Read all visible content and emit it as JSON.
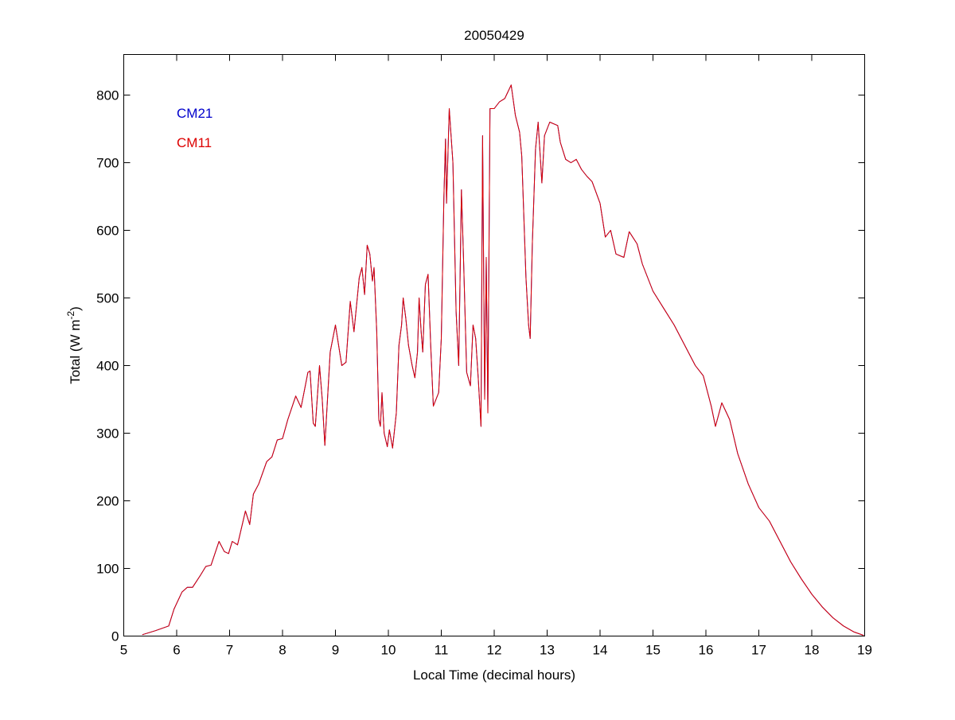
{
  "chart_data": {
    "type": "line",
    "title": "20050429",
    "xlabel": "Local Time (decimal hours)",
    "ylabel": "Total (W m-2)",
    "ylabel_parts": {
      "main": "Total (W m",
      "sup": "-2",
      "end": ")"
    },
    "xlim": [
      5,
      19
    ],
    "ylim": [
      0,
      860
    ],
    "xticks": [
      5,
      6,
      7,
      8,
      9,
      10,
      11,
      12,
      13,
      14,
      15,
      16,
      17,
      18,
      19
    ],
    "yticks": [
      0,
      100,
      200,
      300,
      400,
      500,
      600,
      700,
      800
    ],
    "grid": false,
    "legend_placement": "top-left",
    "x": [
      5.35,
      5.6,
      5.85,
      5.95,
      6.1,
      6.2,
      6.3,
      6.45,
      6.55,
      6.65,
      6.8,
      6.9,
      6.98,
      7.05,
      7.15,
      7.3,
      7.38,
      7.45,
      7.55,
      7.7,
      7.8,
      7.9,
      8.0,
      8.1,
      8.25,
      8.35,
      8.48,
      8.52,
      8.58,
      8.62,
      8.7,
      8.75,
      8.8,
      8.9,
      9.0,
      9.08,
      9.12,
      9.2,
      9.28,
      9.35,
      9.45,
      9.5,
      9.55,
      9.6,
      9.65,
      9.7,
      9.73,
      9.78,
      9.82,
      9.85,
      9.88,
      9.92,
      9.98,
      10.02,
      10.08,
      10.15,
      10.2,
      10.25,
      10.28,
      10.33,
      10.38,
      10.45,
      10.5,
      10.55,
      10.58,
      10.62,
      10.65,
      10.7,
      10.75,
      10.8,
      10.85,
      10.95,
      11.0,
      11.05,
      11.08,
      11.1,
      11.15,
      11.22,
      11.28,
      11.33,
      11.38,
      11.42,
      11.48,
      11.55,
      11.6,
      11.65,
      11.7,
      11.75,
      11.78,
      11.82,
      11.85,
      11.88,
      11.92,
      12.0,
      12.1,
      12.2,
      12.32,
      12.4,
      12.48,
      12.52,
      12.6,
      12.65,
      12.68,
      12.72,
      12.78,
      12.83,
      12.9,
      12.95,
      13.05,
      13.2,
      13.25,
      13.35,
      13.45,
      13.55,
      13.65,
      13.75,
      13.85,
      14.0,
      14.1,
      14.2,
      14.3,
      14.45,
      14.55,
      14.7,
      14.8,
      15.0,
      15.2,
      15.4,
      15.6,
      15.8,
      15.95,
      16.1,
      16.18,
      16.3,
      16.45,
      16.6,
      16.8,
      17.0,
      17.2,
      17.4,
      17.6,
      17.8,
      18.0,
      18.2,
      18.4,
      18.6,
      18.8,
      18.98
    ],
    "series": [
      {
        "name": "CM21",
        "color": "#0000cc",
        "values": [
          2,
          8,
          15,
          40,
          65,
          72,
          72,
          90,
          103,
          105,
          140,
          125,
          122,
          140,
          135,
          185,
          165,
          210,
          225,
          258,
          265,
          290,
          292,
          320,
          355,
          338,
          390,
          392,
          315,
          310,
          400,
          350,
          282,
          420,
          460,
          420,
          400,
          405,
          495,
          450,
          530,
          545,
          505,
          578,
          565,
          525,
          545,
          450,
          320,
          310,
          360,
          300,
          280,
          305,
          278,
          330,
          430,
          460,
          500,
          470,
          430,
          400,
          382,
          420,
          500,
          450,
          420,
          520,
          535,
          430,
          340,
          360,
          440,
          650,
          735,
          640,
          780,
          700,
          480,
          400,
          660,
          560,
          390,
          370,
          460,
          440,
          380,
          310,
          740,
          350,
          560,
          330,
          780,
          780,
          790,
          795,
          815,
          770,
          745,
          710,
          530,
          460,
          440,
          580,
          720,
          760,
          670,
          740,
          760,
          755,
          730,
          705,
          700,
          705,
          690,
          680,
          672,
          640,
          590,
          600,
          565,
          560,
          598,
          580,
          550,
          510,
          485,
          460,
          430,
          400,
          385,
          340,
          310,
          345,
          320,
          270,
          225,
          190,
          170,
          140,
          110,
          85,
          62,
          43,
          27,
          15,
          6,
          1
        ]
      },
      {
        "name": "CM11",
        "color": "#dd0000",
        "values": [
          2,
          8,
          15,
          40,
          65,
          72,
          72,
          90,
          103,
          105,
          140,
          125,
          122,
          140,
          135,
          185,
          165,
          210,
          225,
          258,
          265,
          290,
          292,
          320,
          355,
          338,
          390,
          392,
          315,
          310,
          400,
          350,
          282,
          420,
          460,
          420,
          400,
          405,
          495,
          450,
          530,
          545,
          505,
          578,
          565,
          525,
          545,
          450,
          320,
          310,
          360,
          300,
          280,
          305,
          278,
          330,
          430,
          460,
          500,
          470,
          430,
          400,
          382,
          420,
          500,
          450,
          420,
          520,
          535,
          430,
          340,
          360,
          440,
          650,
          735,
          640,
          780,
          700,
          480,
          400,
          660,
          560,
          390,
          370,
          460,
          440,
          380,
          310,
          740,
          350,
          560,
          330,
          780,
          780,
          790,
          795,
          815,
          770,
          745,
          710,
          530,
          460,
          440,
          580,
          720,
          760,
          670,
          740,
          760,
          755,
          730,
          705,
          700,
          705,
          690,
          680,
          672,
          640,
          590,
          600,
          565,
          560,
          598,
          580,
          550,
          510,
          485,
          460,
          430,
          400,
          385,
          340,
          310,
          345,
          320,
          270,
          225,
          190,
          170,
          140,
          110,
          85,
          62,
          43,
          27,
          15,
          6,
          1
        ]
      }
    ]
  }
}
